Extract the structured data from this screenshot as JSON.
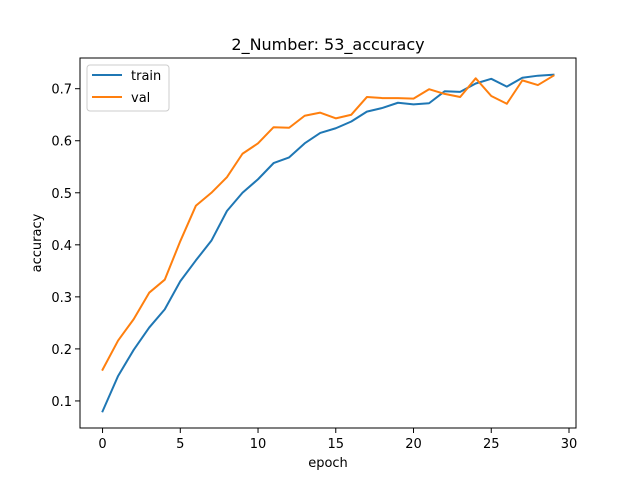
{
  "chart_data": {
    "type": "line",
    "title": "2_Number: 53_accuracy",
    "xlabel": "epoch",
    "ylabel": "accuracy",
    "xlim": [
      -1.45,
      30.45
    ],
    "ylim": [
      0.048,
      0.759
    ],
    "xticks": [
      0,
      5,
      10,
      15,
      20,
      25,
      30
    ],
    "yticks": [
      0.1,
      0.2,
      0.3,
      0.4,
      0.5,
      0.6,
      0.7
    ],
    "ytick_labels": [
      "0.1",
      "0.2",
      "0.3",
      "0.4",
      "0.5",
      "0.6",
      "0.7"
    ],
    "legend_position": "upper-left",
    "x": [
      0,
      1,
      2,
      3,
      4,
      5,
      6,
      7,
      8,
      9,
      10,
      11,
      12,
      13,
      14,
      15,
      16,
      17,
      18,
      19,
      20,
      21,
      22,
      23,
      24,
      25,
      26,
      27,
      28,
      29
    ],
    "series": [
      {
        "name": "train",
        "color": "#1f77b4",
        "values": [
          0.08,
          0.148,
          0.198,
          0.241,
          0.276,
          0.33,
          0.37,
          0.408,
          0.465,
          0.5,
          0.526,
          0.557,
          0.568,
          0.595,
          0.615,
          0.624,
          0.637,
          0.656,
          0.663,
          0.673,
          0.67,
          0.672,
          0.695,
          0.694,
          0.71,
          0.719,
          0.704,
          0.721,
          0.725,
          0.727
        ]
      },
      {
        "name": "val",
        "color": "#ff7f0e",
        "values": [
          0.16,
          0.216,
          0.257,
          0.308,
          0.333,
          0.407,
          0.475,
          0.5,
          0.53,
          0.575,
          0.595,
          0.626,
          0.625,
          0.648,
          0.654,
          0.643,
          0.65,
          0.684,
          0.682,
          0.682,
          0.681,
          0.699,
          0.69,
          0.684,
          0.72,
          0.686,
          0.671,
          0.716,
          0.707,
          0.725
        ]
      }
    ]
  }
}
